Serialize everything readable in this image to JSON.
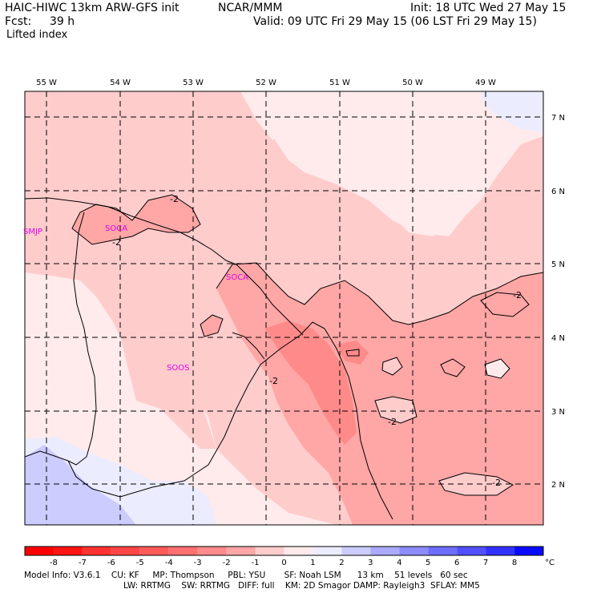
{
  "header": {
    "model_title": "HAIC-HIWC 13km ARW-GFS init",
    "center": "NCAR/MMM",
    "init": "Init: 18 UTC Wed 27 May 15",
    "fcst_label": "Fcst:",
    "fcst_value": "39 h",
    "valid": "Valid: 09 UTC Fri 29 May 15 (06 LST Fri 29 May 15)",
    "field_name": "Lifted index"
  },
  "map": {
    "lon_labels": [
      "55 W",
      "54 W",
      "53 W",
      "52 W",
      "51 W",
      "50 W",
      "49 W"
    ],
    "lat_labels": [
      "7 N",
      "6 N",
      "5 N",
      "4 N",
      "3 N",
      "2 N"
    ],
    "contour_labels": [
      "-2",
      "-2",
      "-2",
      "-2",
      "-2",
      "-2"
    ],
    "stations": [
      "SMJP",
      "SOCA",
      "SOCA",
      "SOOS"
    ]
  },
  "colorbar": {
    "ticks": [
      "-8",
      "-7",
      "-6",
      "-5",
      "-4",
      "-3",
      "-2",
      "-1",
      "0",
      "1",
      "2",
      "3",
      "4",
      "5",
      "6",
      "7",
      "8"
    ],
    "unit": "°C",
    "colors": [
      "#ff1414",
      "#ff3232",
      "#ff4646",
      "#ff5a5a",
      "#ff7070",
      "#ff8a8a",
      "#ffa6a6",
      "#ffcccc",
      "#ffebeb",
      "#ececff",
      "#ccccff",
      "#aaaaff",
      "#8c8cff",
      "#6e6eff",
      "#5050ff",
      "#3232ff",
      "#0a0aff"
    ]
  },
  "model_info": {
    "line1": "Model Info: V3.6.1    CU: KF     MP: Thompson     PBL: YSU       SF: Noah LSM      13 km    51 levels   60 sec",
    "line2": "LW: RRTMG    SW: RRTMG   DIFF: full    KM: 2D Smagor DAMP: Rayleigh3  SFLAY: MM5"
  }
}
